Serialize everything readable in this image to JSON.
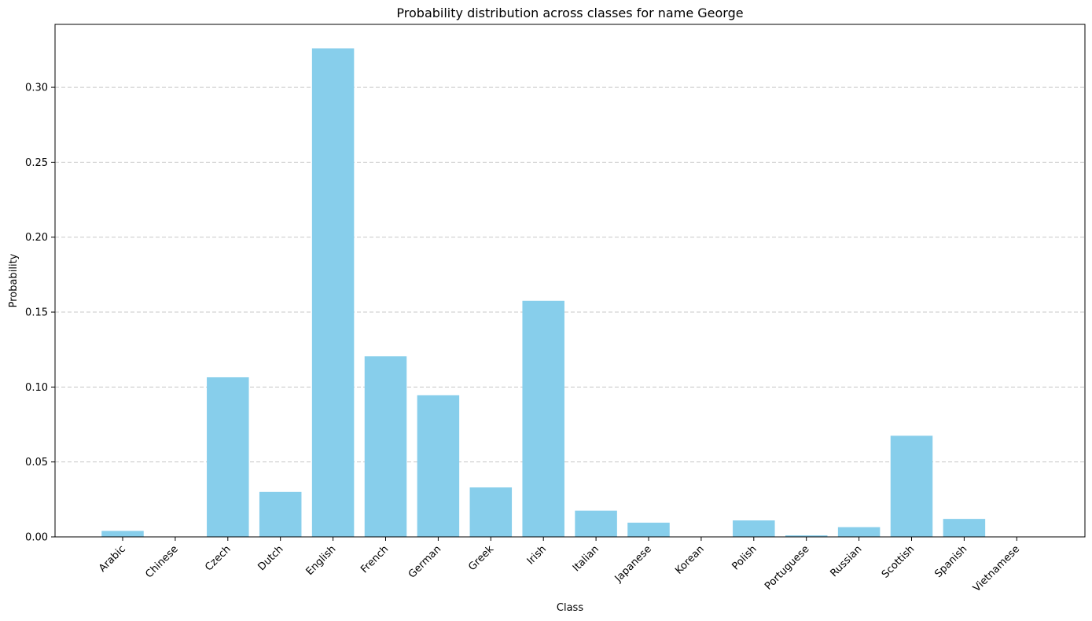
{
  "chart_data": {
    "type": "bar",
    "title": "Probability distribution across classes for name George",
    "xlabel": "Class",
    "ylabel": "Probability",
    "categories": [
      "Arabic",
      "Chinese",
      "Czech",
      "Dutch",
      "English",
      "French",
      "German",
      "Greek",
      "Irish",
      "Italian",
      "Japanese",
      "Korean",
      "Polish",
      "Portuguese",
      "Russian",
      "Scottish",
      "Spanish",
      "Vietnamese"
    ],
    "values": [
      0.004,
      0.0,
      0.1065,
      0.03,
      0.326,
      0.1205,
      0.0945,
      0.033,
      0.1575,
      0.0175,
      0.0095,
      0.0,
      0.011,
      0.001,
      0.0065,
      0.0675,
      0.012,
      0.0
    ],
    "ylim": [
      0,
      0.342
    ],
    "yticks": [
      0.0,
      0.05,
      0.1,
      0.15,
      0.2,
      0.25,
      0.3
    ],
    "ytick_labels": [
      "0.00",
      "0.05",
      "0.10",
      "0.15",
      "0.20",
      "0.25",
      "0.30"
    ],
    "grid": "y-dashed",
    "bar_color": "#87CEEB"
  }
}
